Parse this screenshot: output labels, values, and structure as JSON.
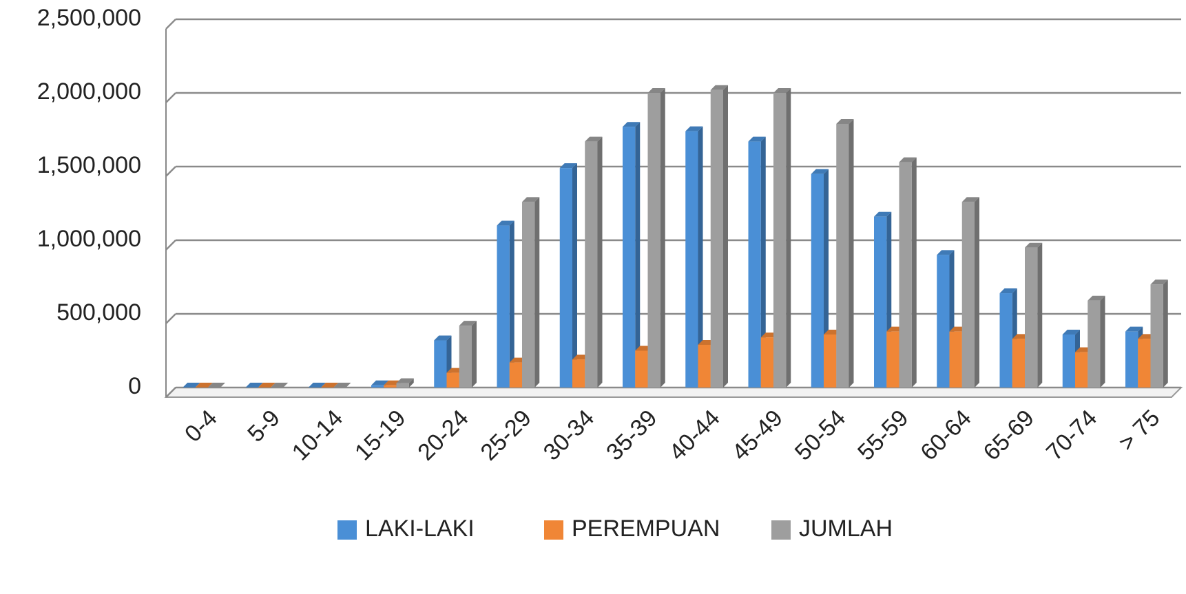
{
  "chart_data": {
    "type": "bar",
    "categories": [
      "0-4",
      "5-9",
      "10-14",
      "15-19",
      "20-24",
      "25-29",
      "30-34",
      "35-39",
      "40-44",
      "45-49",
      "50-54",
      "55-59",
      "60-64",
      "65-69",
      "70-74",
      "> 75"
    ],
    "series": [
      {
        "name": "LAKI-LAKI",
        "color": "#4a8fd6",
        "values": [
          0,
          0,
          0,
          15000,
          320000,
          1100000,
          1490000,
          1770000,
          1740000,
          1670000,
          1450000,
          1160000,
          900000,
          640000,
          360000,
          380000
        ]
      },
      {
        "name": "PEREMPUAN",
        "color": "#f08636",
        "values": [
          0,
          0,
          0,
          15000,
          100000,
          170000,
          190000,
          250000,
          290000,
          340000,
          360000,
          380000,
          380000,
          330000,
          240000,
          330000
        ]
      },
      {
        "name": "JUMLAH",
        "color": "#9e9e9e",
        "values": [
          0,
          0,
          0,
          30000,
          420000,
          1260000,
          1670000,
          2000000,
          2020000,
          2000000,
          1790000,
          1530000,
          1260000,
          950000,
          590000,
          700000
        ]
      }
    ],
    "ylim": [
      0,
      2500000
    ],
    "yticks": [
      0,
      {
        "value": 500000,
        "label": "500,000"
      },
      {
        "value": 1000000,
        "label": "1,000,000"
      },
      {
        "value": 1500000,
        "label": "1,500,000"
      },
      {
        "value": 2000000,
        "label": "2,000,000"
      },
      {
        "value": 2500000,
        "label": "2,500,000"
      }
    ],
    "grid": true,
    "legend": "bottom"
  }
}
